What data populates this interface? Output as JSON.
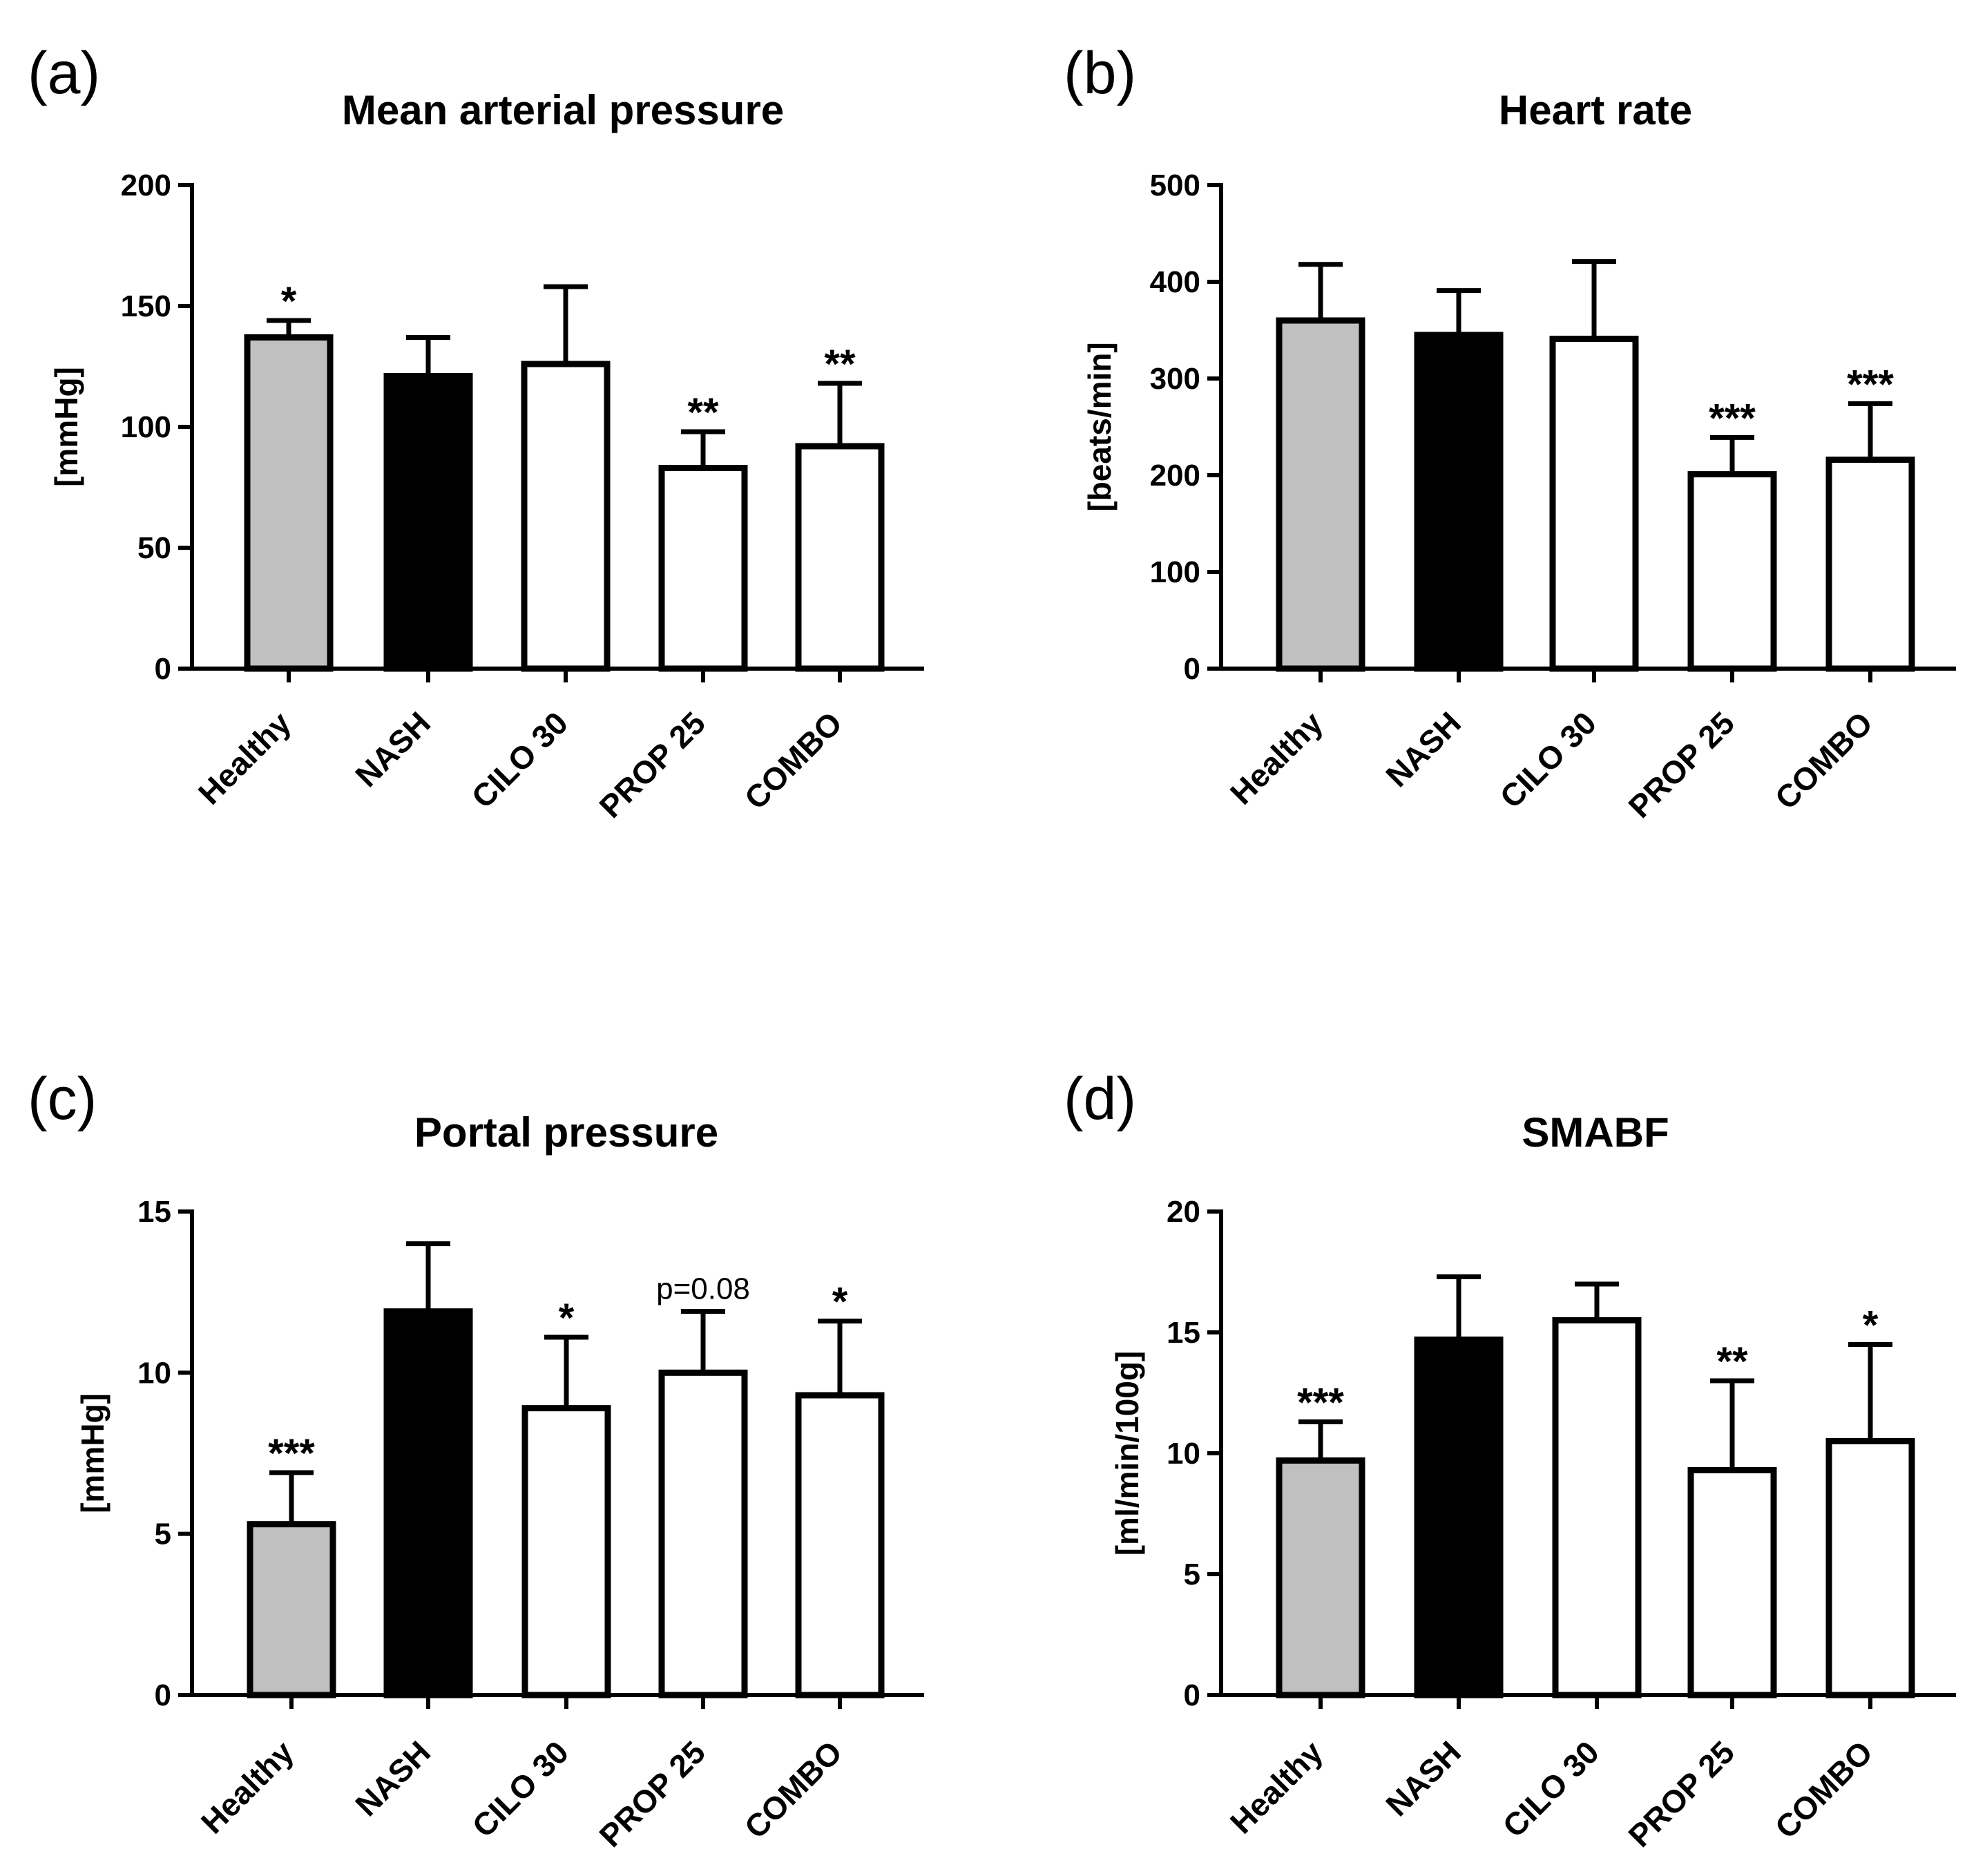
{
  "figure": {
    "colors": {
      "healthy": "#c0c0c0",
      "nash": "#000000",
      "treated": "#ffffff",
      "stroke": "#000000"
    }
  },
  "chart_data": [
    {
      "type": "bar",
      "panel": "(a)",
      "title": "Mean arterial pressure",
      "ylabel": "[mmHg]",
      "categories": [
        "Healthy",
        "NASH",
        "CILO 30",
        "PROP 25",
        "COMBO"
      ],
      "values": [
        137,
        121,
        126,
        83,
        92
      ],
      "error_upper": [
        144,
        137,
        158,
        98,
        118
      ],
      "significance": [
        "*",
        "",
        "",
        "**",
        "**"
      ],
      "ylim": [
        0,
        200
      ],
      "yticks": [
        0,
        50,
        100,
        150,
        200
      ],
      "ytick_labels": [
        "0",
        "50",
        "100",
        "150",
        "200"
      ]
    },
    {
      "type": "bar",
      "panel": "(b)",
      "title": "Heart rate",
      "ylabel": "[beats/min]",
      "categories": [
        "Healthy",
        "NASH",
        "CILO 30",
        "PROP 25",
        "COMBO"
      ],
      "values": [
        360,
        345,
        341,
        201,
        216
      ],
      "error_upper": [
        418,
        391,
        421,
        239,
        274
      ],
      "significance": [
        "",
        "",
        "",
        "***",
        "***"
      ],
      "ylim": [
        0,
        500
      ],
      "yticks": [
        0,
        100,
        200,
        300,
        400,
        500
      ],
      "ytick_labels": [
        "0",
        "100",
        "200",
        "300",
        "400",
        "500"
      ]
    },
    {
      "type": "bar",
      "panel": "(c)",
      "title": "Portal pressure",
      "ylabel": "[mmHg]",
      "categories": [
        "Healthy",
        "NASH",
        "CILO 30",
        "PROP 25",
        "COMBO"
      ],
      "values": [
        5.3,
        11.9,
        8.9,
        10.0,
        9.3
      ],
      "error_upper": [
        6.9,
        14.0,
        11.1,
        11.9,
        11.6
      ],
      "significance": [
        "***",
        "",
        "*",
        "p=0.08",
        "*"
      ],
      "ylim": [
        0,
        15
      ],
      "yticks": [
        0,
        5,
        10,
        15
      ],
      "ytick_labels": [
        "0",
        "5",
        "10",
        "15"
      ]
    },
    {
      "type": "bar",
      "panel": "(d)",
      "title": "SMABF",
      "ylabel": "[ml/min/100g]",
      "categories": [
        "Healthy",
        "NASH",
        "CILO 30",
        "PROP 25",
        "COMBO"
      ],
      "values": [
        9.7,
        14.7,
        15.5,
        9.3,
        10.5
      ],
      "error_upper": [
        11.3,
        17.3,
        17.0,
        13.0,
        14.5
      ],
      "significance": [
        "***",
        "",
        "",
        "**",
        "*"
      ],
      "ylim": [
        0,
        20
      ],
      "yticks": [
        0,
        5,
        10,
        15,
        20
      ],
      "ytick_labels": [
        "0",
        "5",
        "10",
        "15",
        "20"
      ]
    }
  ]
}
